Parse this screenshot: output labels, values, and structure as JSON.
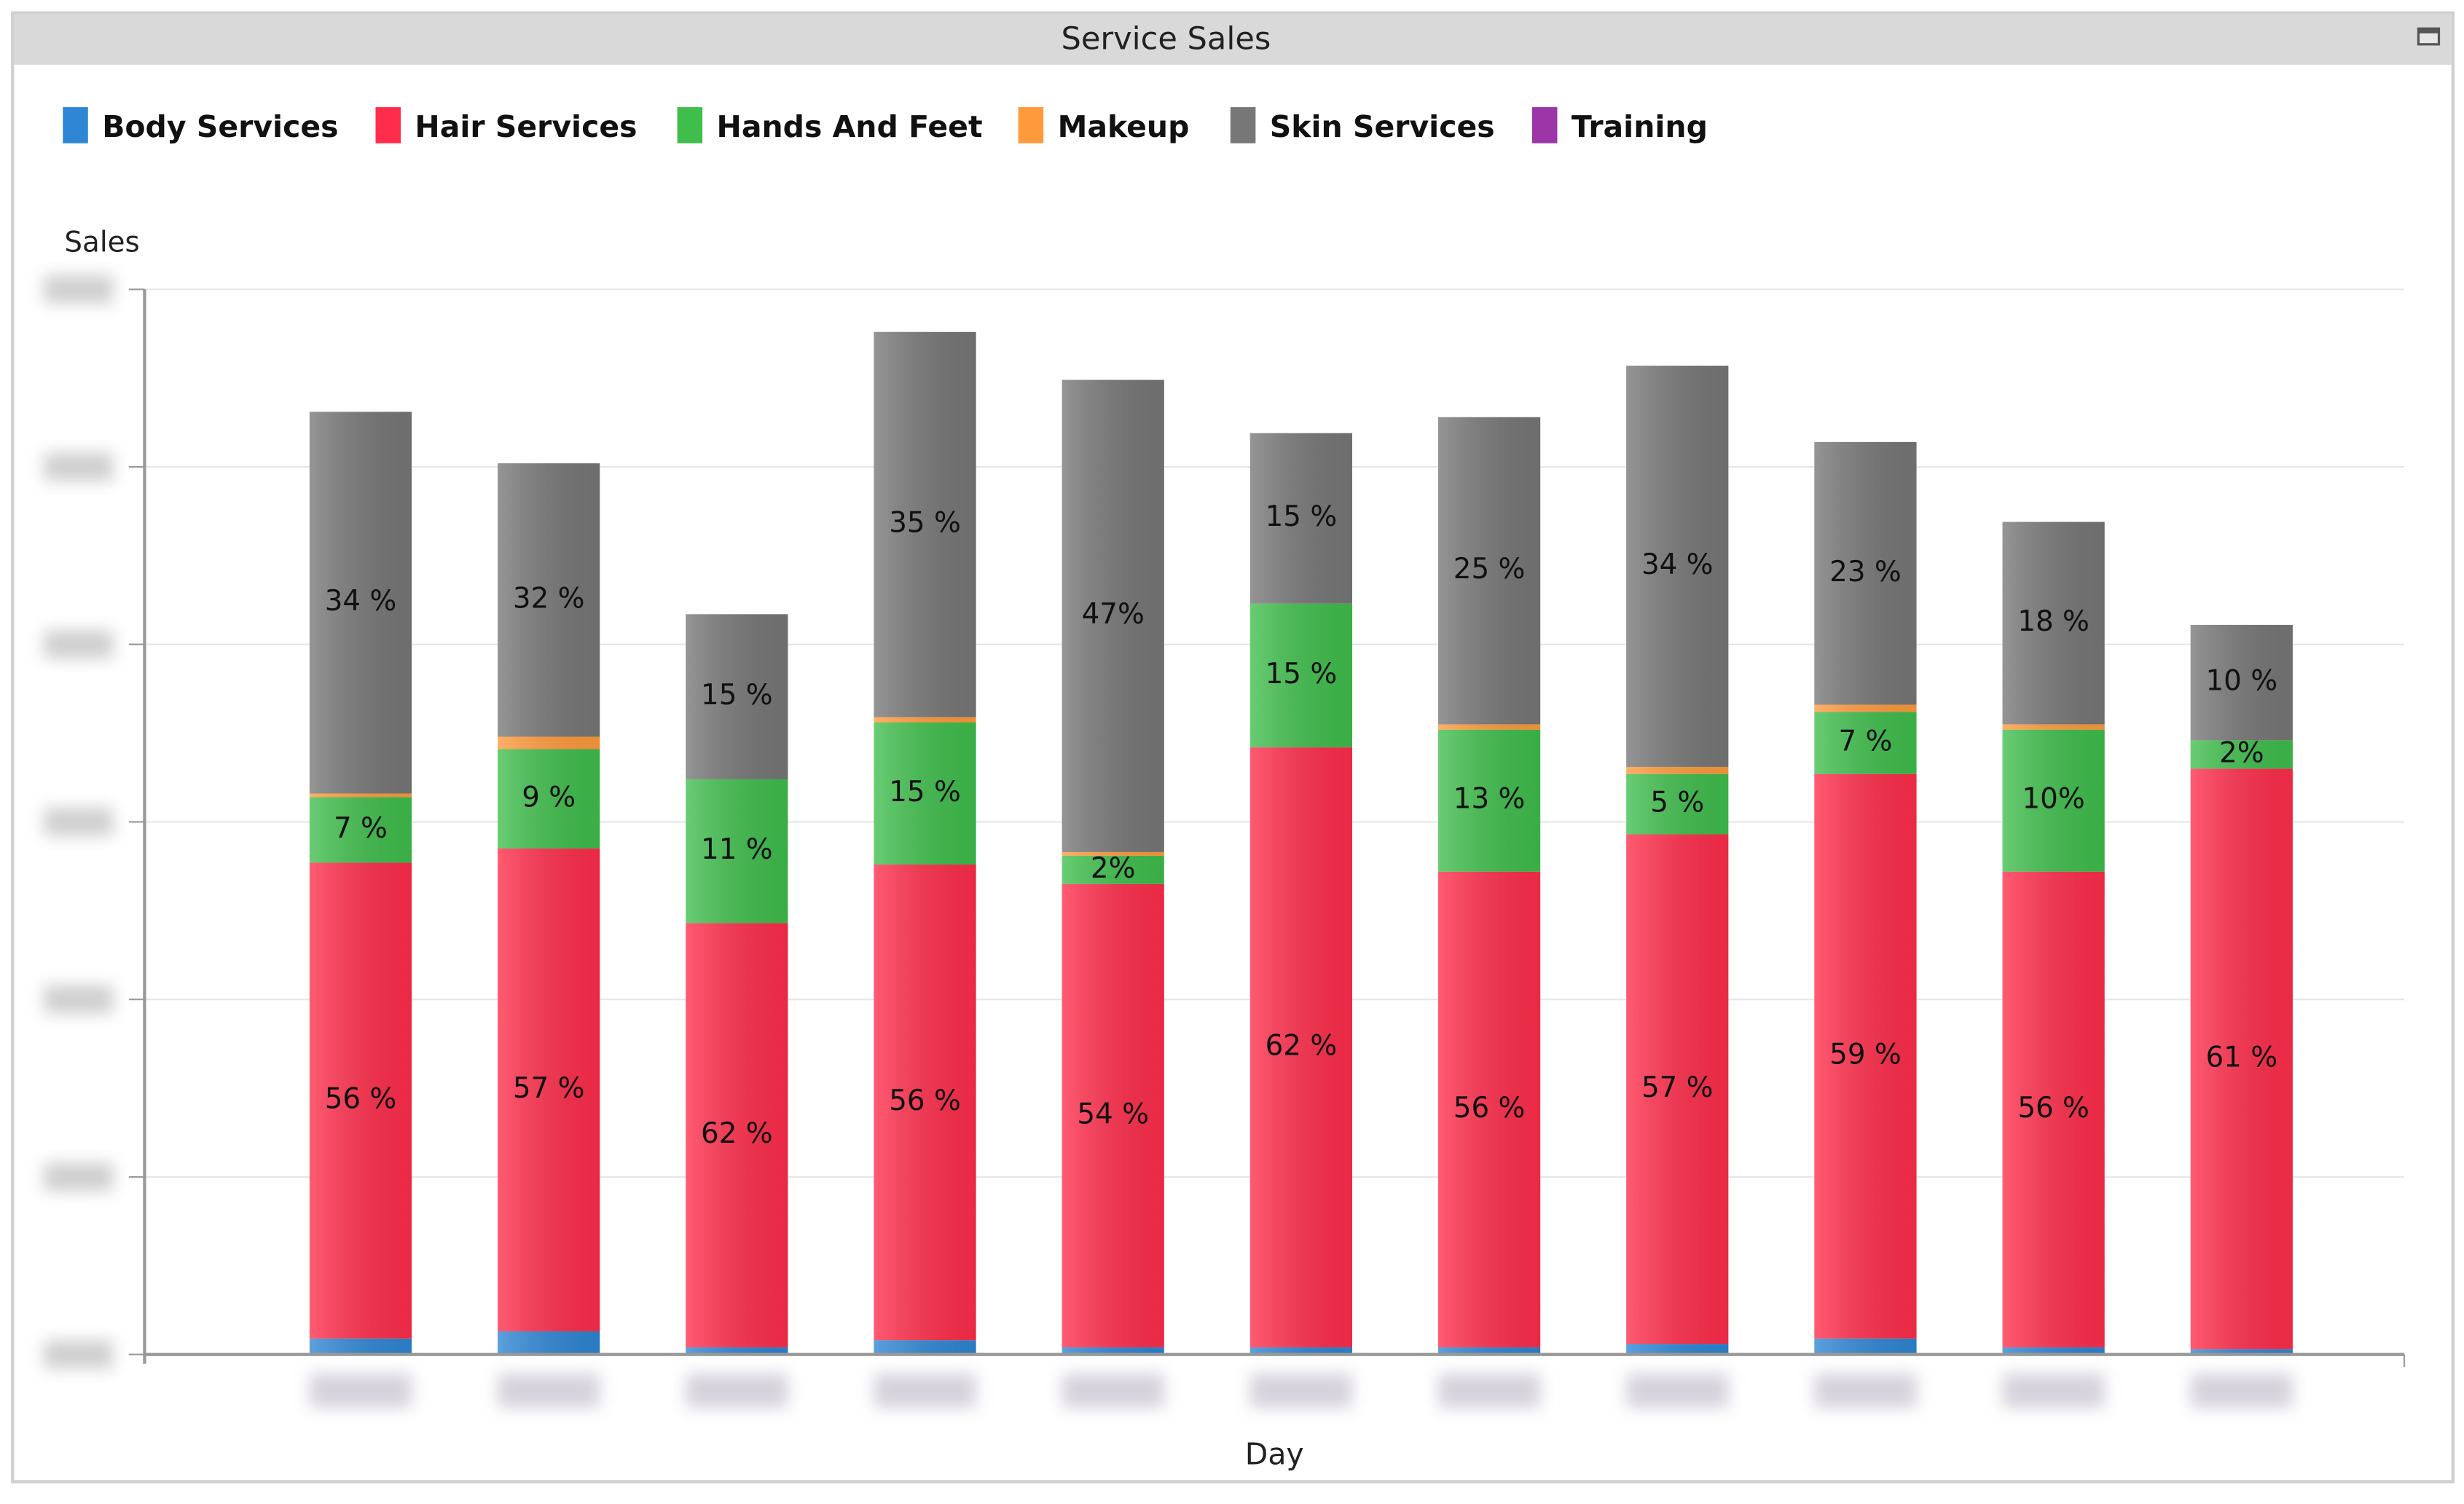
{
  "window": {
    "title": "Service Sales",
    "maximize_icon": "window-maximize-icon",
    "title_bar_color": "#d9d9d9"
  },
  "chart_data": {
    "type": "bar",
    "stacked": true,
    "title": "Service Sales",
    "xlabel": "Day",
    "ylabel": "Sales",
    "ylim": [
      0,
      6
    ],
    "y_ticks_blurred": true,
    "x_ticks_blurred": true,
    "grid": true,
    "legend_position": "top-left",
    "categories": [
      "1",
      "2",
      "3",
      "4",
      "5",
      "6",
      "7",
      "8",
      "9",
      "10",
      "11"
    ],
    "series": [
      {
        "name": "Body Services",
        "color": "#2e86d4",
        "values": [
          0.09,
          0.13,
          0.04,
          0.08,
          0.04,
          0.04,
          0.04,
          0.06,
          0.09,
          0.04,
          0.03
        ],
        "labels": [
          "",
          "",
          "",
          "",
          "",
          "",
          "",
          "",
          "",
          "",
          ""
        ]
      },
      {
        "name": "Hair Services",
        "color": "#ff2d4b",
        "values": [
          2.68,
          2.72,
          2.39,
          2.68,
          2.61,
          3.38,
          2.68,
          2.87,
          3.18,
          2.68,
          3.27
        ],
        "labels": [
          "56 %",
          "57 %",
          "62 %",
          "56 %",
          "54 %",
          "62 %",
          "56 %",
          "57 %",
          "59 %",
          "56 %",
          "61 %"
        ]
      },
      {
        "name": "Hands And Feet",
        "color": "#3fbe4c",
        "values": [
          0.37,
          0.56,
          0.81,
          0.8,
          0.16,
          0.81,
          0.8,
          0.34,
          0.35,
          0.8,
          0.16
        ],
        "labels": [
          "7 %",
          "9 %",
          "11 %",
          "15 %",
          "2%",
          "15 %",
          "13 %",
          "5 %",
          "7 %",
          "10%",
          "2%"
        ]
      },
      {
        "name": "Makeup",
        "color": "#ff9a3c",
        "values": [
          0.02,
          0.07,
          0,
          0.03,
          0.02,
          0,
          0.03,
          0.04,
          0.04,
          0.03,
          0
        ],
        "labels": [
          "",
          "",
          "",
          "",
          "",
          "",
          "",
          "",
          "",
          "",
          ""
        ]
      },
      {
        "name": "Skin Services",
        "color": "#777777",
        "values": [
          2.15,
          1.54,
          0.93,
          2.17,
          2.66,
          0.96,
          1.73,
          2.26,
          1.48,
          1.14,
          0.65
        ],
        "labels": [
          "34 %",
          "32 %",
          "15 %",
          "35 %",
          "47%",
          "15 %",
          "25 %",
          "34 %",
          "23 %",
          "18 %",
          "10 %"
        ]
      },
      {
        "name": "Training",
        "color": "#9b35a8",
        "values": [
          0,
          0,
          0,
          0,
          0,
          0,
          0,
          0,
          0,
          0,
          0
        ],
        "labels": [
          "",
          "",
          "",
          "",
          "",
          "",
          "",
          "",
          "",
          "",
          ""
        ]
      }
    ]
  }
}
